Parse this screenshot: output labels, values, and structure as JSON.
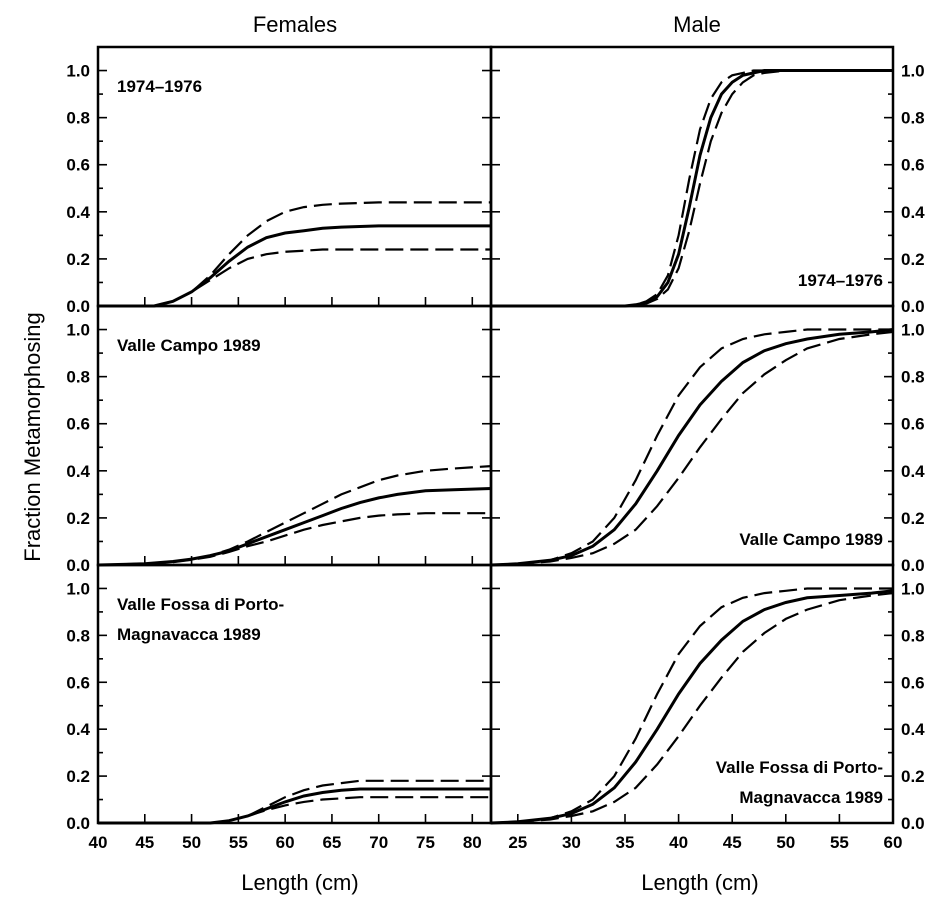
{
  "columns": [
    "Females",
    "Male"
  ],
  "ylabel": "Fraction Metamorphosing",
  "xlabel": "Length (cm)",
  "chart_data": [
    {
      "type": "line",
      "panel": "females-row1",
      "label_lines": [
        "1974–1976"
      ],
      "label_pos": "top-left",
      "xlim": [
        40,
        82
      ],
      "ylim": [
        0,
        1.1
      ],
      "yticks": [
        "0.0",
        "0.2",
        "0.4",
        "0.6",
        "0.8",
        "1.0"
      ],
      "series": [
        {
          "style": "solid",
          "x": [
            40,
            46,
            48,
            50,
            52,
            54,
            56,
            58,
            60,
            62,
            64,
            66,
            70,
            75,
            82
          ],
          "y": [
            0,
            0.0,
            0.02,
            0.06,
            0.12,
            0.19,
            0.25,
            0.29,
            0.31,
            0.32,
            0.33,
            0.335,
            0.34,
            0.34,
            0.34
          ]
        },
        {
          "style": "dashed",
          "x": [
            40,
            46,
            48,
            50,
            52,
            54,
            56,
            58,
            60,
            62,
            64,
            66,
            70,
            75,
            82
          ],
          "y": [
            0,
            0.0,
            0.02,
            0.06,
            0.13,
            0.22,
            0.3,
            0.36,
            0.4,
            0.42,
            0.43,
            0.435,
            0.44,
            0.44,
            0.44
          ]
        },
        {
          "style": "dashed",
          "x": [
            40,
            46,
            48,
            50,
            52,
            54,
            56,
            58,
            60,
            62,
            64,
            66,
            70,
            75,
            82
          ],
          "y": [
            0,
            0.0,
            0.02,
            0.06,
            0.11,
            0.16,
            0.2,
            0.22,
            0.23,
            0.235,
            0.24,
            0.24,
            0.24,
            0.24,
            0.24
          ]
        }
      ]
    },
    {
      "type": "line",
      "panel": "females-row2",
      "label_lines": [
        "Valle Campo 1989"
      ],
      "label_pos": "top-left",
      "xlim": [
        40,
        82
      ],
      "ylim": [
        0,
        1.1
      ],
      "yticks": [
        "0.0",
        "0.2",
        "0.4",
        "0.6",
        "0.8",
        "1.0"
      ],
      "series": [
        {
          "style": "solid",
          "x": [
            40,
            45,
            48,
            50,
            52,
            54,
            56,
            58,
            60,
            62,
            64,
            66,
            68,
            70,
            72,
            75,
            78,
            82
          ],
          "y": [
            0,
            0.005,
            0.015,
            0.025,
            0.04,
            0.06,
            0.09,
            0.12,
            0.15,
            0.18,
            0.21,
            0.24,
            0.265,
            0.285,
            0.3,
            0.315,
            0.32,
            0.325
          ]
        },
        {
          "style": "dashed",
          "x": [
            40,
            45,
            48,
            50,
            52,
            54,
            56,
            58,
            60,
            62,
            64,
            66,
            68,
            70,
            72,
            75,
            78,
            82
          ],
          "y": [
            0,
            0.005,
            0.015,
            0.025,
            0.04,
            0.065,
            0.1,
            0.14,
            0.18,
            0.22,
            0.26,
            0.3,
            0.33,
            0.36,
            0.38,
            0.4,
            0.41,
            0.42
          ]
        },
        {
          "style": "dashed",
          "x": [
            40,
            45,
            48,
            50,
            52,
            54,
            56,
            58,
            60,
            62,
            64,
            66,
            68,
            70,
            72,
            75,
            78,
            82
          ],
          "y": [
            0,
            0.005,
            0.012,
            0.022,
            0.035,
            0.055,
            0.08,
            0.1,
            0.125,
            0.15,
            0.17,
            0.185,
            0.2,
            0.21,
            0.215,
            0.22,
            0.22,
            0.22
          ]
        }
      ]
    },
    {
      "type": "line",
      "panel": "females-row3",
      "label_lines": [
        "Valle Fossa di Porto-",
        "Magnavacca 1989"
      ],
      "label_pos": "top-left",
      "xlim": [
        40,
        82
      ],
      "ylim": [
        0,
        1.1
      ],
      "yticks": [
        "0.0",
        "0.2",
        "0.4",
        "0.6",
        "0.8",
        "1.0"
      ],
      "series": [
        {
          "style": "solid",
          "x": [
            40,
            52,
            54,
            56,
            58,
            60,
            62,
            64,
            66,
            68,
            70,
            75,
            82
          ],
          "y": [
            0,
            0.0,
            0.01,
            0.03,
            0.06,
            0.09,
            0.115,
            0.13,
            0.14,
            0.145,
            0.145,
            0.145,
            0.145
          ]
        },
        {
          "style": "dashed",
          "x": [
            40,
            52,
            54,
            56,
            58,
            60,
            62,
            64,
            66,
            68,
            70,
            75,
            82
          ],
          "y": [
            0,
            0.0,
            0.01,
            0.03,
            0.07,
            0.11,
            0.14,
            0.16,
            0.17,
            0.18,
            0.18,
            0.18,
            0.18
          ]
        },
        {
          "style": "dashed",
          "x": [
            40,
            52,
            54,
            56,
            58,
            60,
            62,
            64,
            66,
            68,
            70,
            75,
            82
          ],
          "y": [
            0,
            0.0,
            0.01,
            0.03,
            0.055,
            0.075,
            0.09,
            0.1,
            0.105,
            0.11,
            0.11,
            0.11,
            0.11
          ]
        }
      ]
    },
    {
      "type": "line",
      "panel": "male-row1",
      "label_lines": [
        "1974–1976"
      ],
      "label_pos": "bottom-right",
      "xlim": [
        22.5,
        60
      ],
      "ylim": [
        0,
        1.1
      ],
      "yticks": [
        "0.0",
        "0.2",
        "0.4",
        "0.6",
        "0.8",
        "1.0"
      ],
      "series": [
        {
          "style": "solid",
          "x": [
            22.5,
            35,
            36,
            37,
            38,
            39,
            40,
            41,
            42,
            43,
            44,
            45,
            46,
            47,
            48,
            50,
            55,
            60
          ],
          "y": [
            0,
            0,
            0.005,
            0.015,
            0.04,
            0.1,
            0.22,
            0.42,
            0.64,
            0.8,
            0.9,
            0.95,
            0.98,
            0.99,
            1.0,
            1.0,
            1.0,
            1.0
          ]
        },
        {
          "style": "dashed",
          "x": [
            22.5,
            35,
            36,
            37,
            38,
            39,
            40,
            41,
            42,
            43,
            44,
            45,
            46,
            47,
            48,
            50,
            55,
            60
          ],
          "y": [
            0,
            0,
            0.005,
            0.02,
            0.05,
            0.13,
            0.3,
            0.54,
            0.75,
            0.88,
            0.95,
            0.98,
            0.99,
            1.0,
            1.0,
            1.0,
            1.0,
            1.0
          ]
        },
        {
          "style": "dashed",
          "x": [
            22.5,
            35,
            36,
            37,
            38,
            39,
            40,
            41,
            42,
            43,
            44,
            45,
            46,
            47,
            48,
            50,
            55,
            60
          ],
          "y": [
            0,
            0,
            0.003,
            0.01,
            0.03,
            0.07,
            0.16,
            0.32,
            0.52,
            0.7,
            0.82,
            0.9,
            0.95,
            0.98,
            0.99,
            1.0,
            1.0,
            1.0
          ]
        }
      ]
    },
    {
      "type": "line",
      "panel": "male-row2",
      "label_lines": [
        "Valle Campo 1989"
      ],
      "label_pos": "bottom-right",
      "xlim": [
        22.5,
        60
      ],
      "ylim": [
        0,
        1.1
      ],
      "yticks": [
        "0.0",
        "0.2",
        "0.4",
        "0.6",
        "0.8",
        "1.0"
      ],
      "series": [
        {
          "style": "solid",
          "x": [
            22.5,
            25,
            28,
            30,
            32,
            34,
            36,
            38,
            40,
            42,
            44,
            46,
            48,
            50,
            52,
            55,
            58,
            60
          ],
          "y": [
            0,
            0.005,
            0.02,
            0.04,
            0.08,
            0.15,
            0.26,
            0.4,
            0.55,
            0.68,
            0.78,
            0.86,
            0.91,
            0.94,
            0.96,
            0.98,
            0.99,
            1.0
          ]
        },
        {
          "style": "dashed",
          "x": [
            22.5,
            25,
            28,
            30,
            32,
            34,
            36,
            38,
            40,
            42,
            44,
            46,
            48,
            50,
            52,
            55,
            58,
            60
          ],
          "y": [
            0,
            0.005,
            0.02,
            0.05,
            0.1,
            0.2,
            0.36,
            0.55,
            0.72,
            0.84,
            0.92,
            0.96,
            0.98,
            0.99,
            1.0,
            1.0,
            1.0,
            1.0
          ]
        },
        {
          "style": "dashed",
          "x": [
            22.5,
            25,
            28,
            30,
            32,
            34,
            36,
            38,
            40,
            42,
            44,
            46,
            48,
            50,
            52,
            55,
            58,
            60
          ],
          "y": [
            0,
            0.005,
            0.015,
            0.03,
            0.05,
            0.09,
            0.15,
            0.25,
            0.37,
            0.5,
            0.62,
            0.73,
            0.81,
            0.87,
            0.92,
            0.96,
            0.98,
            0.99
          ]
        }
      ]
    },
    {
      "type": "line",
      "panel": "male-row3",
      "label_lines": [
        "Valle Fossa di Porto-",
        "Magnavacca 1989"
      ],
      "label_pos": "bottom-right",
      "xlim": [
        22.5,
        60
      ],
      "ylim": [
        0,
        1.1
      ],
      "yticks": [
        "0.0",
        "0.2",
        "0.4",
        "0.6",
        "0.8",
        "1.0"
      ],
      "xticks": [
        "25",
        "30",
        "35",
        "40",
        "45",
        "50",
        "55",
        "60"
      ],
      "series": [
        {
          "style": "solid",
          "x": [
            22.5,
            25,
            28,
            30,
            32,
            34,
            36,
            38,
            40,
            42,
            44,
            46,
            48,
            50,
            52,
            55,
            58,
            60
          ],
          "y": [
            0,
            0.005,
            0.02,
            0.04,
            0.08,
            0.15,
            0.26,
            0.4,
            0.55,
            0.68,
            0.78,
            0.86,
            0.91,
            0.94,
            0.96,
            0.97,
            0.98,
            0.99
          ]
        },
        {
          "style": "dashed",
          "x": [
            22.5,
            25,
            28,
            30,
            32,
            34,
            36,
            38,
            40,
            42,
            44,
            46,
            48,
            50,
            52,
            55,
            58,
            60
          ],
          "y": [
            0,
            0.005,
            0.02,
            0.05,
            0.1,
            0.2,
            0.36,
            0.55,
            0.72,
            0.84,
            0.92,
            0.96,
            0.98,
            0.99,
            1.0,
            1.0,
            1.0,
            1.0
          ]
        },
        {
          "style": "dashed",
          "x": [
            22.5,
            25,
            28,
            30,
            32,
            34,
            36,
            38,
            40,
            42,
            44,
            46,
            48,
            50,
            52,
            55,
            58,
            60
          ],
          "y": [
            0,
            0.005,
            0.015,
            0.03,
            0.05,
            0.09,
            0.15,
            0.25,
            0.37,
            0.5,
            0.62,
            0.73,
            0.81,
            0.87,
            0.91,
            0.95,
            0.97,
            0.98
          ]
        }
      ]
    }
  ],
  "female_xticks": [
    "40",
    "45",
    "50",
    "55",
    "60",
    "65",
    "70",
    "75",
    "80"
  ]
}
